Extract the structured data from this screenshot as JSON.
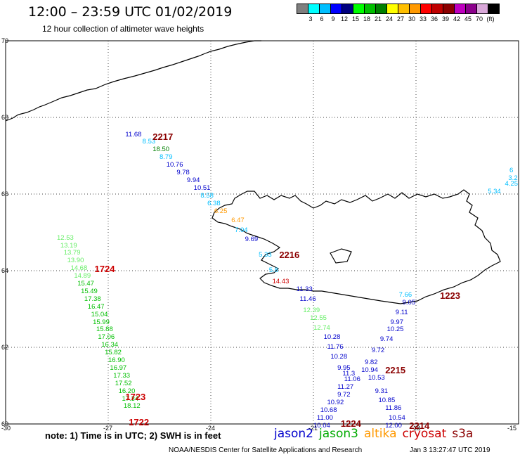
{
  "title": "12:00 – 23:59 UTC 01/02/2019",
  "subtitle": "12 hour collection of altimeter wave heights",
  "color_scale": {
    "colors": [
      "#7f7f7f",
      "#00ffff",
      "#00bfff",
      "#0000ff",
      "#00007f",
      "#00ff00",
      "#00bf00",
      "#008000",
      "#ffff00",
      "#ffbf00",
      "#ff9900",
      "#ff0000",
      "#bf0000",
      "#8b0000",
      "#bf00bf",
      "#8b008b",
      "#d9a8d9",
      "#000000"
    ],
    "labels": [
      "3",
      "6",
      "9",
      "12",
      "15",
      "18",
      "21",
      "24",
      "27",
      "30",
      "33",
      "36",
      "39",
      "42",
      "45",
      "70",
      "(ft)"
    ]
  },
  "axes": {
    "lat_ticks": [
      "70",
      "68",
      "66",
      "64",
      "62",
      "60"
    ],
    "lon_ticks": [
      "-30",
      "-27",
      "-24",
      "-21",
      "-18",
      "-15"
    ]
  },
  "measurements": [
    {
      "t": "11.68",
      "lon": -26.5,
      "lat": 67.55,
      "c": "#0000cc"
    },
    {
      "t": "8.53",
      "lon": -26.0,
      "lat": 67.35,
      "c": "#00bfff"
    },
    {
      "t": "18.50",
      "lon": -25.7,
      "lat": 67.15,
      "c": "#008000"
    },
    {
      "t": "8.79",
      "lon": -25.5,
      "lat": 66.95,
      "c": "#00bfff"
    },
    {
      "t": "10.76",
      "lon": -25.3,
      "lat": 66.75,
      "c": "#0000cc"
    },
    {
      "t": "9.78",
      "lon": -25.0,
      "lat": 66.55,
      "c": "#0000cc"
    },
    {
      "t": "9.94",
      "lon": -24.7,
      "lat": 66.35,
      "c": "#0000cc"
    },
    {
      "t": "10.51",
      "lon": -24.5,
      "lat": 66.15,
      "c": "#0000cc"
    },
    {
      "t": "8.58",
      "lon": -24.3,
      "lat": 65.95,
      "c": "#00bfff"
    },
    {
      "t": "6.38",
      "lon": -24.1,
      "lat": 65.75,
      "c": "#00bfff"
    },
    {
      "t": "6.25",
      "lon": -23.9,
      "lat": 65.55,
      "c": "#ff9900"
    },
    {
      "t": "6.47",
      "lon": -23.4,
      "lat": 65.3,
      "c": "#ff9900"
    },
    {
      "t": "7.04",
      "lon": -23.3,
      "lat": 65.05,
      "c": "#00bfff"
    },
    {
      "t": "9.69",
      "lon": -23.0,
      "lat": 64.8,
      "c": "#0000cc"
    },
    {
      "t": "5.33",
      "lon": -22.6,
      "lat": 64.4,
      "c": "#00bfff"
    },
    {
      "t": "5.8",
      "lon": -22.3,
      "lat": 64.0,
      "c": "#00bfff"
    },
    {
      "t": "14.43",
      "lon": -22.2,
      "lat": 63.7,
      "c": "#cc0000"
    },
    {
      "t": "11.33",
      "lon": -21.5,
      "lat": 63.5,
      "c": "#0000cc"
    },
    {
      "t": "11.46",
      "lon": -21.4,
      "lat": 63.25,
      "c": "#0000cc"
    },
    {
      "t": "12.39",
      "lon": -21.3,
      "lat": 62.95,
      "c": "#66ee66"
    },
    {
      "t": "12.55",
      "lon": -21.1,
      "lat": 62.75,
      "c": "#66ee66"
    },
    {
      "t": "12.74",
      "lon": -21.0,
      "lat": 62.5,
      "c": "#66ee66"
    },
    {
      "t": "10.28",
      "lon": -20.7,
      "lat": 62.25,
      "c": "#0000cc"
    },
    {
      "t": "11.76",
      "lon": -20.6,
      "lat": 62.0,
      "c": "#0000cc"
    },
    {
      "t": "10.28",
      "lon": -20.5,
      "lat": 61.75,
      "c": "#0000cc"
    },
    {
      "t": "9.95",
      "lon": -20.3,
      "lat": 61.45,
      "c": "#0000cc"
    },
    {
      "t": "11.3",
      "lon": -20.15,
      "lat": 61.3,
      "c": "#0000cc"
    },
    {
      "t": "11.06",
      "lon": -20.1,
      "lat": 61.15,
      "c": "#0000cc"
    },
    {
      "t": "11.27",
      "lon": -20.3,
      "lat": 60.95,
      "c": "#0000cc"
    },
    {
      "t": "9.72",
      "lon": -20.3,
      "lat": 60.75,
      "c": "#0000cc"
    },
    {
      "t": "10.92",
      "lon": -20.6,
      "lat": 60.55,
      "c": "#0000cc"
    },
    {
      "t": "10.68",
      "lon": -20.8,
      "lat": 60.35,
      "c": "#0000cc"
    },
    {
      "t": "11.00",
      "lon": -20.9,
      "lat": 60.15,
      "c": "#0000cc"
    },
    {
      "t": "10.04",
      "lon": -21.0,
      "lat": 59.95,
      "c": "#0000cc"
    },
    {
      "t": "9.05",
      "lon": -18.4,
      "lat": 63.15,
      "c": "#0000cc"
    },
    {
      "t": "7.66",
      "lon": -18.5,
      "lat": 63.35,
      "c": "#00bfff"
    },
    {
      "t": "9.11",
      "lon": -18.6,
      "lat": 62.9,
      "c": "#0000cc"
    },
    {
      "t": "9.97",
      "lon": -18.75,
      "lat": 62.65,
      "c": "#0000cc"
    },
    {
      "t": "10.25",
      "lon": -18.85,
      "lat": 62.45,
      "c": "#0000cc"
    },
    {
      "t": "9.74",
      "lon": -19.05,
      "lat": 62.2,
      "c": "#0000cc"
    },
    {
      "t": "9.72",
      "lon": -19.3,
      "lat": 61.9,
      "c": "#0000cc"
    },
    {
      "t": "9.82",
      "lon": -19.5,
      "lat": 61.6,
      "c": "#0000cc"
    },
    {
      "t": "10.94",
      "lon": -19.6,
      "lat": 61.4,
      "c": "#0000cc"
    },
    {
      "t": "10.53",
      "lon": -19.4,
      "lat": 61.2,
      "c": "#0000cc"
    },
    {
      "t": "9.31",
      "lon": -19.2,
      "lat": 60.85,
      "c": "#0000cc"
    },
    {
      "t": "10.85",
      "lon": -19.1,
      "lat": 60.6,
      "c": "#0000cc"
    },
    {
      "t": "11.86",
      "lon": -18.9,
      "lat": 60.4,
      "c": "#0000cc"
    },
    {
      "t": "10.54",
      "lon": -18.8,
      "lat": 60.15,
      "c": "#0000cc"
    },
    {
      "t": "12.00",
      "lon": -18.9,
      "lat": 59.95,
      "c": "#0000cc"
    },
    {
      "t": "12.53",
      "lon": -28.5,
      "lat": 64.85,
      "c": "#66ee66"
    },
    {
      "t": "13.19",
      "lon": -28.4,
      "lat": 64.65,
      "c": "#66ee66"
    },
    {
      "t": "13.79",
      "lon": -28.3,
      "lat": 64.45,
      "c": "#66ee66"
    },
    {
      "t": "13.90",
      "lon": -28.2,
      "lat": 64.25,
      "c": "#66ee66"
    },
    {
      "t": "14.68",
      "lon": -28.1,
      "lat": 64.05,
      "c": "#66ee66"
    },
    {
      "t": "14.89",
      "lon": -28.0,
      "lat": 63.85,
      "c": "#66ee66"
    },
    {
      "t": "15.47",
      "lon": -27.9,
      "lat": 63.65,
      "c": "#00bf00"
    },
    {
      "t": "15.49",
      "lon": -27.8,
      "lat": 63.45,
      "c": "#00bf00"
    },
    {
      "t": "17.38",
      "lon": -27.7,
      "lat": 63.25,
      "c": "#00bf00"
    },
    {
      "t": "16.47",
      "lon": -27.6,
      "lat": 63.05,
      "c": "#00bf00"
    },
    {
      "t": "15.04",
      "lon": -27.5,
      "lat": 62.85,
      "c": "#00bf00"
    },
    {
      "t": "15.99",
      "lon": -27.45,
      "lat": 62.65,
      "c": "#00bf00"
    },
    {
      "t": "15.88",
      "lon": -27.35,
      "lat": 62.45,
      "c": "#00bf00"
    },
    {
      "t": "17.06",
      "lon": -27.3,
      "lat": 62.25,
      "c": "#00bf00"
    },
    {
      "t": "16.34",
      "lon": -27.2,
      "lat": 62.05,
      "c": "#00bf00"
    },
    {
      "t": "15.82",
      "lon": -27.1,
      "lat": 61.85,
      "c": "#00bf00"
    },
    {
      "t": "16.90",
      "lon": -27.0,
      "lat": 61.65,
      "c": "#00bf00"
    },
    {
      "t": "16.97",
      "lon": -26.95,
      "lat": 61.45,
      "c": "#00bf00"
    },
    {
      "t": "17.33",
      "lon": -26.85,
      "lat": 61.25,
      "c": "#00bf00"
    },
    {
      "t": "17.52",
      "lon": -26.8,
      "lat": 61.05,
      "c": "#00bf00"
    },
    {
      "t": "16.20",
      "lon": -26.7,
      "lat": 60.85,
      "c": "#00bf00"
    },
    {
      "t": "17.34",
      "lon": -26.6,
      "lat": 60.65,
      "c": "#00bf00"
    },
    {
      "t": "18.12",
      "lon": -26.55,
      "lat": 60.45,
      "c": "#00bf00"
    },
    {
      "t": "6",
      "lon": -15.1,
      "lat": 66.6,
      "c": "#00bfff"
    },
    {
      "t": "3.2",
      "lon": -15.3,
      "lat": 66.4,
      "c": "#00bfff"
    },
    {
      "t": "4.25",
      "lon": -15.4,
      "lat": 66.25,
      "c": "#00bfff"
    },
    {
      "t": "5.34",
      "lon": -15.9,
      "lat": 66.05,
      "c": "#00bfff"
    }
  ],
  "pass_times": [
    {
      "t": "2217",
      "lon": -25.7,
      "lat": 67.55,
      "c": "#8b0000"
    },
    {
      "t": "2216",
      "lon": -22.0,
      "lat": 64.45,
      "c": "#8b0000"
    },
    {
      "t": "1724",
      "lon": -27.4,
      "lat": 64.1,
      "c": "#cc0000"
    },
    {
      "t": "1223",
      "lon": -17.3,
      "lat": 63.4,
      "c": "#8b0000"
    },
    {
      "t": "2215",
      "lon": -18.9,
      "lat": 61.45,
      "c": "#8b0000"
    },
    {
      "t": "1723",
      "lon": -26.5,
      "lat": 60.75,
      "c": "#cc0000"
    },
    {
      "t": "1722",
      "lon": -26.4,
      "lat": 60.1,
      "c": "#cc0000"
    },
    {
      "t": "1224",
      "lon": -20.2,
      "lat": 60.05,
      "c": "#8b0000"
    },
    {
      "t": "2214",
      "lon": -18.2,
      "lat": 60.0,
      "c": "#8b0000"
    }
  ],
  "note": "note:  1) Time is in UTC;  2) SWH is in feet",
  "legend": [
    {
      "label": "jason2",
      "color": "#0000cc"
    },
    {
      "label": "jason3",
      "color": "#00aa00"
    },
    {
      "label": "altika",
      "color": "#ff9900"
    },
    {
      "label": "cryosat",
      "color": "#cc0000"
    },
    {
      "label": "s3a",
      "color": "#8b0000"
    }
  ],
  "footer": "NOAA/NESDIS Center for Satellite Applications and Research",
  "timestamp": "Jan  3 13:27:47 UTC 2019"
}
